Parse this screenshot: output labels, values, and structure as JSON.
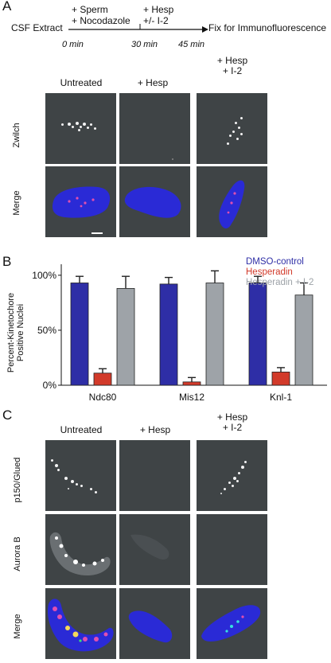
{
  "panel_a": {
    "letter": "A",
    "timeline": {
      "start_label": "CSF Extract",
      "step1_label_1": "+ Sperm",
      "step1_label_2": "+ Nocodazole",
      "step2_label_1": "+ Hesp",
      "step2_label_2": "+/- I-2",
      "end_label": "Fix for Immunofluorescence",
      "t0": "0 min",
      "t1": "30 min",
      "t2": "45 min"
    },
    "columns": [
      "Untreated",
      "+ Hesp",
      "+ Hesp\n+ I-2"
    ],
    "rows": [
      "Zwilch",
      "Merge"
    ]
  },
  "panel_b": {
    "letter": "B",
    "chart_data": {
      "type": "bar",
      "categories": [
        "Ndc80",
        "Mis12",
        "Knl-1"
      ],
      "series": [
        {
          "name": "DMSO-control",
          "values": [
            93,
            92,
            93
          ],
          "errors": [
            6,
            6,
            6
          ],
          "color": "#2e2ea6"
        },
        {
          "name": "Hesperadin",
          "values": [
            11,
            3,
            12
          ],
          "errors": [
            4,
            4,
            4
          ],
          "color": "#d23a2a"
        },
        {
          "name": "Hesperadin + I-2",
          "values": [
            88,
            93,
            82
          ],
          "errors": [
            11,
            11,
            11
          ],
          "color": "#9ea3a8"
        }
      ],
      "ylabel": "Percent-Kinetochore Positive Nuclei",
      "yticks": [
        "0%",
        "50%",
        "100%"
      ],
      "ylim": [
        0,
        110
      ],
      "legend_position": "top-right"
    }
  },
  "panel_c": {
    "letter": "C",
    "columns": [
      "Untreated",
      "+ Hesp",
      "+ Hesp\n+ I-2"
    ],
    "rows": [
      "p150/Glued",
      "Aurora B",
      "Merge"
    ]
  },
  "colors": {
    "tile_bg": "#3f4446",
    "nucleus": "#2a2ad6",
    "accent_red": "#d23a2a"
  },
  "scale_bar": "white"
}
